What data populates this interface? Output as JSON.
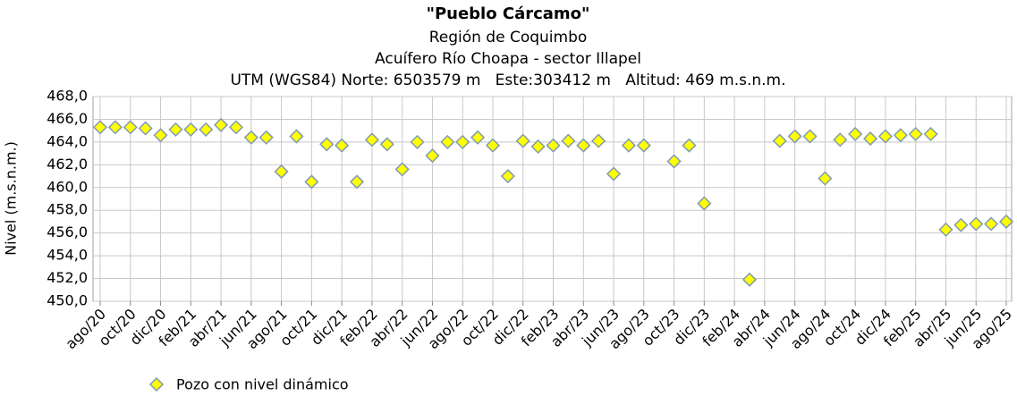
{
  "chart_data": {
    "type": "scatter",
    "title": "\"Pueblo Cárcamo\"",
    "subtitle": [
      "Región de Coquimbo",
      "Acuífero Río Choapa - sector Illapel",
      "UTM (WGS84) Norte: 6503579 m   Este:303412 m   Altitud: 469 m.s.n.m."
    ],
    "y_label": "Nivel (m.s.n.m.)",
    "categories": [
      "ago/20",
      null,
      "oct/20",
      null,
      "dic/20",
      null,
      "feb/21",
      null,
      "abr/21",
      null,
      "jun/21",
      null,
      "ago/21",
      null,
      "oct/21",
      null,
      "dic/21",
      null,
      "feb/22",
      null,
      "abr/22",
      null,
      "jun/22",
      null,
      "ago/22",
      null,
      "oct/22",
      null,
      "dic/22",
      null,
      "feb/23",
      null,
      "abr/23",
      null,
      "jun/23",
      null,
      "ago/23",
      null,
      "oct/23",
      null,
      "dic/23",
      null,
      "feb/24",
      null,
      "abr/24",
      null,
      "jun/24",
      null,
      "ago/24",
      null,
      "oct/24",
      null,
      "dic/24",
      null,
      "feb/25",
      null,
      "abr/25",
      null,
      "jun/25",
      null,
      "ago/25"
    ],
    "series": [
      {
        "name": "Pozo con nivel dinámico",
        "color": "#ffff00",
        "edge": "#7f9ab4",
        "values": [
          465.3,
          465.3,
          465.3,
          465.2,
          464.6,
          465.1,
          465.1,
          465.1,
          465.5,
          465.3,
          464.4,
          464.4,
          461.4,
          464.5,
          460.5,
          463.8,
          463.7,
          460.5,
          464.2,
          463.8,
          461.6,
          464.0,
          462.8,
          464.0,
          464.0,
          464.4,
          463.7,
          461.0,
          464.1,
          463.6,
          463.7,
          464.1,
          463.7,
          464.1,
          461.2,
          463.7,
          463.7,
          null,
          462.3,
          463.7,
          458.6,
          null,
          null,
          451.9,
          null,
          464.1,
          464.5,
          464.5,
          460.8,
          464.2,
          464.7,
          464.3,
          464.5,
          464.6,
          464.7,
          464.7,
          456.3,
          456.7,
          456.8,
          456.8,
          457.0
        ]
      }
    ],
    "ylim": [
      450,
      468
    ],
    "yticks": [
      {
        "value": 450,
        "label": "450,0"
      },
      {
        "value": 452,
        "label": "452,0"
      },
      {
        "value": 454,
        "label": "454,0"
      },
      {
        "value": 456,
        "label": "456,0"
      },
      {
        "value": 458,
        "label": "458,0"
      },
      {
        "value": 460,
        "label": "460,0"
      },
      {
        "value": 462,
        "label": "462,0"
      },
      {
        "value": 464,
        "label": "464,0"
      },
      {
        "value": 466,
        "label": "466,0"
      },
      {
        "value": 468,
        "label": "468,0"
      }
    ],
    "grid": true
  }
}
